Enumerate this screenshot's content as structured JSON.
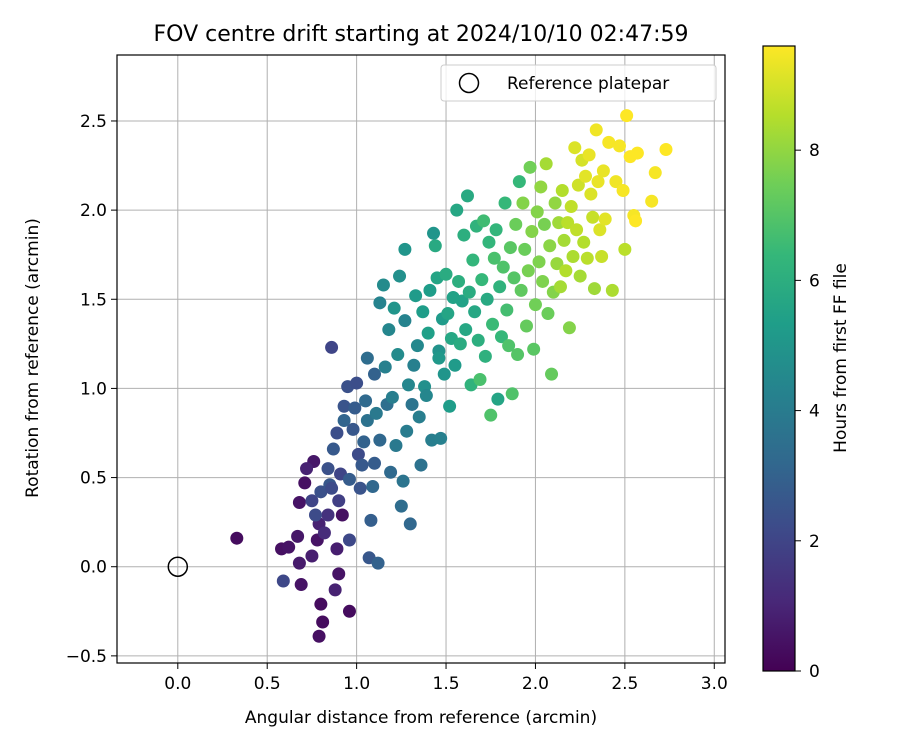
{
  "chart_data": {
    "type": "scatter",
    "title": "FOV centre drift starting at 2024/10/10 02:47:59",
    "xlabel": "Angular distance from reference (arcmin)",
    "ylabel": "Rotation from reference (arcmin)",
    "xlim": [
      -0.34,
      3.06
    ],
    "ylim": [
      -0.54,
      2.87
    ],
    "xticks": [
      0.0,
      0.5,
      1.0,
      1.5,
      2.0,
      2.5,
      3.0
    ],
    "xtick_labels": [
      "0.0",
      "0.5",
      "1.0",
      "1.5",
      "2.0",
      "2.5",
      "3.0"
    ],
    "yticks": [
      -0.5,
      0.0,
      0.5,
      1.0,
      1.5,
      2.0,
      2.5
    ],
    "ytick_labels": [
      "−0.5",
      "0.0",
      "0.5",
      "1.0",
      "1.5",
      "2.0",
      "2.5"
    ],
    "grid": true,
    "legend": {
      "position": "top-right",
      "entries": [
        "Reference platepar"
      ]
    },
    "reference_point": {
      "x": 0.0,
      "y": 0.0,
      "marker": "open-circle"
    },
    "colorbar": {
      "label": "Hours from first FF file",
      "range": [
        0,
        9.6
      ],
      "ticks": [
        0,
        2,
        4,
        6,
        8
      ],
      "tick_labels": [
        "0",
        "2",
        "4",
        "6",
        "8"
      ],
      "colormap": "viridis",
      "colors": [
        "#440154",
        "#482878",
        "#3e4989",
        "#31688e",
        "#26828e",
        "#1f9e89",
        "#35b779",
        "#6ece58",
        "#b5de2b",
        "#fde725"
      ]
    },
    "points": [
      [
        0.33,
        0.16,
        0.3
      ],
      [
        0.58,
        0.1,
        0.4
      ],
      [
        0.62,
        0.11,
        0.5
      ],
      [
        0.67,
        0.17,
        0.6
      ],
      [
        0.68,
        0.02,
        0.7
      ],
      [
        0.68,
        0.36,
        0.5
      ],
      [
        0.69,
        -0.1,
        0.5
      ],
      [
        0.71,
        0.47,
        0.4
      ],
      [
        0.75,
        0.06,
        0.8
      ],
      [
        0.76,
        0.59,
        0.6
      ],
      [
        0.78,
        0.15,
        0.5
      ],
      [
        0.79,
        -0.39,
        0.4
      ],
      [
        0.8,
        -0.21,
        0.3
      ],
      [
        0.81,
        -0.31,
        0.3
      ],
      [
        0.79,
        0.24,
        0.9
      ],
      [
        0.82,
        0.19,
        1.2
      ],
      [
        0.84,
        0.29,
        1.4
      ],
      [
        0.88,
        -0.13,
        0.9
      ],
      [
        0.89,
        0.1,
        0.8
      ],
      [
        0.9,
        -0.04,
        0.5
      ],
      [
        0.92,
        0.29,
        0.4
      ],
      [
        0.96,
        -0.25,
        0.3
      ],
      [
        0.72,
        0.55,
        0.9
      ],
      [
        0.59,
        -0.08,
        2.1
      ],
      [
        0.75,
        0.37,
        2.0
      ],
      [
        0.77,
        0.29,
        2.2
      ],
      [
        0.8,
        0.42,
        2.4
      ],
      [
        0.85,
        0.46,
        2.6
      ],
      [
        0.84,
        0.55,
        2.4
      ],
      [
        0.86,
        0.44,
        2.2
      ],
      [
        0.86,
        1.23,
        2.0
      ],
      [
        0.87,
        0.66,
        2.7
      ],
      [
        0.89,
        0.75,
        2.3
      ],
      [
        0.9,
        0.37,
        1.8
      ],
      [
        0.91,
        0.52,
        2.0
      ],
      [
        0.93,
        0.82,
        3.1
      ],
      [
        0.93,
        0.9,
        2.5
      ],
      [
        0.95,
        1.01,
        2.4
      ],
      [
        0.96,
        0.15,
        2.1
      ],
      [
        0.96,
        0.49,
        2.8
      ],
      [
        0.98,
        0.77,
        2.6
      ],
      [
        0.99,
        0.89,
        2.8
      ],
      [
        1.0,
        1.03,
        2.3
      ],
      [
        1.01,
        0.63,
        2.2
      ],
      [
        1.02,
        0.44,
        2.5
      ],
      [
        1.03,
        0.57,
        2.7
      ],
      [
        1.04,
        0.7,
        3.0
      ],
      [
        1.05,
        0.93,
        3.3
      ],
      [
        1.06,
        0.82,
        3.6
      ],
      [
        1.06,
        1.17,
        3.4
      ],
      [
        1.07,
        0.05,
        2.6
      ],
      [
        1.08,
        0.26,
        2.9
      ],
      [
        1.09,
        0.45,
        3.2
      ],
      [
        1.1,
        0.58,
        2.8
      ],
      [
        1.1,
        1.08,
        3.0
      ],
      [
        1.11,
        0.86,
        3.9
      ],
      [
        1.12,
        0.02,
        3.0
      ],
      [
        1.13,
        0.71,
        3.2
      ],
      [
        1.13,
        1.48,
        4.3
      ],
      [
        1.15,
        1.58,
        4.6
      ],
      [
        1.16,
        1.12,
        4.2
      ],
      [
        1.17,
        0.91,
        3.5
      ],
      [
        1.18,
        1.33,
        4.4
      ],
      [
        1.19,
        0.53,
        3.3
      ],
      [
        1.2,
        0.95,
        4.1
      ],
      [
        1.21,
        1.45,
        5.0
      ],
      [
        1.22,
        0.68,
        3.9
      ],
      [
        1.23,
        1.19,
        4.6
      ],
      [
        1.24,
        1.63,
        4.8
      ],
      [
        1.25,
        0.34,
        3.4
      ],
      [
        1.26,
        0.48,
        3.7
      ],
      [
        1.27,
        1.78,
        5.0
      ],
      [
        1.27,
        1.38,
        4.3
      ],
      [
        1.28,
        0.76,
        4.0
      ],
      [
        1.29,
        1.02,
        4.4
      ],
      [
        1.3,
        0.24,
        3.2
      ],
      [
        1.31,
        0.91,
        3.7
      ],
      [
        1.32,
        1.13,
        4.2
      ],
      [
        1.33,
        1.52,
        5.2
      ],
      [
        1.34,
        1.24,
        4.5
      ],
      [
        1.35,
        0.84,
        4.1
      ],
      [
        1.36,
        0.57,
        3.6
      ],
      [
        1.37,
        1.43,
        5.3
      ],
      [
        1.38,
        1.01,
        4.8
      ],
      [
        1.39,
        0.96,
        4.4
      ],
      [
        1.4,
        1.31,
        5.4
      ],
      [
        1.41,
        1.55,
        5.3
      ],
      [
        1.42,
        0.71,
        4.1
      ],
      [
        1.43,
        1.87,
        5.0
      ],
      [
        1.44,
        1.8,
        5.8
      ],
      [
        1.45,
        1.62,
        5.6
      ],
      [
        1.46,
        1.21,
        4.9
      ],
      [
        1.46,
        1.17,
        5.1
      ],
      [
        1.47,
        0.72,
        4.2
      ],
      [
        1.48,
        1.39,
        5.2
      ],
      [
        1.49,
        1.08,
        5.0
      ],
      [
        1.5,
        1.64,
        5.9
      ],
      [
        1.51,
        1.42,
        5.6
      ],
      [
        1.52,
        0.9,
        5.3
      ],
      [
        1.53,
        1.28,
        5.7
      ],
      [
        1.54,
        1.51,
        5.5
      ],
      [
        1.55,
        1.13,
        5.2
      ],
      [
        1.56,
        2.0,
        5.7
      ],
      [
        1.57,
        1.6,
        6.0
      ],
      [
        1.58,
        1.25,
        5.9
      ],
      [
        1.59,
        1.49,
        5.5
      ],
      [
        1.6,
        1.86,
        6.0
      ],
      [
        1.61,
        1.33,
        5.7
      ],
      [
        1.62,
        2.08,
        5.8
      ],
      [
        1.63,
        1.54,
        5.9
      ],
      [
        1.64,
        1.02,
        6.2
      ],
      [
        1.65,
        1.72,
        6.3
      ],
      [
        1.66,
        1.43,
        5.7
      ],
      [
        1.67,
        1.91,
        6.2
      ],
      [
        1.68,
        1.27,
        6.0
      ],
      [
        1.69,
        1.05,
        6.8
      ],
      [
        1.7,
        1.61,
        6.4
      ],
      [
        1.71,
        1.94,
        6.6
      ],
      [
        1.72,
        1.18,
        6.1
      ],
      [
        1.73,
        1.5,
        5.8
      ],
      [
        1.74,
        1.82,
        6.3
      ],
      [
        1.75,
        0.85,
        6.9
      ],
      [
        1.76,
        1.36,
        6.5
      ],
      [
        1.77,
        1.73,
        6.8
      ],
      [
        1.78,
        1.89,
        6.3
      ],
      [
        1.79,
        0.94,
        5.6
      ],
      [
        1.8,
        1.57,
        6.2
      ],
      [
        1.81,
        1.29,
        6.4
      ],
      [
        1.82,
        1.68,
        6.9
      ],
      [
        1.83,
        2.04,
        6.4
      ],
      [
        1.84,
        1.44,
        6.7
      ],
      [
        1.85,
        1.24,
        6.9
      ],
      [
        1.86,
        1.79,
        7.1
      ],
      [
        1.87,
        0.97,
        6.9
      ],
      [
        1.88,
        1.62,
        7.0
      ],
      [
        1.89,
        1.92,
        7.4
      ],
      [
        1.9,
        1.19,
        7.0
      ],
      [
        1.91,
        2.16,
        6.4
      ],
      [
        1.92,
        1.55,
        7.2
      ],
      [
        1.93,
        2.04,
        7.8
      ],
      [
        1.94,
        1.78,
        7.4
      ],
      [
        1.95,
        1.35,
        7.3
      ],
      [
        1.96,
        1.66,
        7.6
      ],
      [
        1.97,
        2.24,
        7.5
      ],
      [
        1.98,
        1.88,
        7.8
      ],
      [
        1.99,
        1.22,
        7.1
      ],
      [
        2.0,
        1.47,
        7.5
      ],
      [
        2.01,
        1.99,
        7.8
      ],
      [
        2.02,
        1.71,
        7.7
      ],
      [
        2.03,
        2.13,
        8.0
      ],
      [
        2.04,
        1.6,
        7.7
      ],
      [
        2.05,
        1.92,
        7.6
      ],
      [
        2.06,
        2.26,
        8.3
      ],
      [
        2.07,
        1.42,
        7.4
      ],
      [
        2.08,
        1.8,
        7.9
      ],
      [
        2.09,
        1.08,
        7.3
      ],
      [
        2.1,
        1.54,
        7.8
      ],
      [
        2.11,
        2.04,
        8.0
      ],
      [
        2.12,
        1.7,
        8.1
      ],
      [
        2.13,
        1.93,
        8.2
      ],
      [
        2.14,
        1.57,
        8.3
      ],
      [
        2.15,
        2.11,
        8.5
      ],
      [
        2.16,
        1.83,
        8.3
      ],
      [
        2.17,
        1.66,
        8.5
      ],
      [
        2.18,
        1.93,
        8.6
      ],
      [
        2.19,
        1.34,
        7.8
      ],
      [
        2.2,
        2.02,
        8.7
      ],
      [
        2.21,
        1.74,
        8.4
      ],
      [
        2.22,
        2.35,
        9.1
      ],
      [
        2.23,
        1.89,
        8.7
      ],
      [
        2.24,
        2.14,
        8.9
      ],
      [
        2.25,
        1.63,
        8.3
      ],
      [
        2.26,
        2.28,
        9.0
      ],
      [
        2.27,
        1.82,
        8.5
      ],
      [
        2.28,
        2.19,
        9.2
      ],
      [
        2.29,
        1.73,
        8.6
      ],
      [
        2.3,
        2.31,
        9.3
      ],
      [
        2.31,
        2.09,
        9.1
      ],
      [
        2.32,
        1.96,
        8.8
      ],
      [
        2.33,
        1.56,
        8.2
      ],
      [
        2.34,
        2.45,
        9.4
      ],
      [
        2.35,
        2.16,
        9.3
      ],
      [
        2.36,
        1.89,
        9.1
      ],
      [
        2.37,
        1.74,
        8.8
      ],
      [
        2.38,
        2.22,
        9.3
      ],
      [
        2.39,
        1.95,
        9.2
      ],
      [
        2.41,
        2.38,
        9.5
      ],
      [
        2.43,
        1.55,
        8.4
      ],
      [
        2.45,
        2.16,
        9.4
      ],
      [
        2.47,
        2.36,
        9.5
      ],
      [
        2.49,
        2.11,
        9.5
      ],
      [
        2.5,
        1.78,
        8.6
      ],
      [
        2.51,
        2.53,
        9.6
      ],
      [
        2.53,
        2.3,
        9.6
      ],
      [
        2.55,
        1.97,
        9.5
      ],
      [
        2.56,
        1.94,
        9.6
      ],
      [
        2.57,
        2.32,
        9.6
      ],
      [
        2.65,
        2.05,
        9.5
      ],
      [
        2.67,
        2.21,
        9.5
      ],
      [
        2.73,
        2.34,
        9.6
      ]
    ]
  }
}
